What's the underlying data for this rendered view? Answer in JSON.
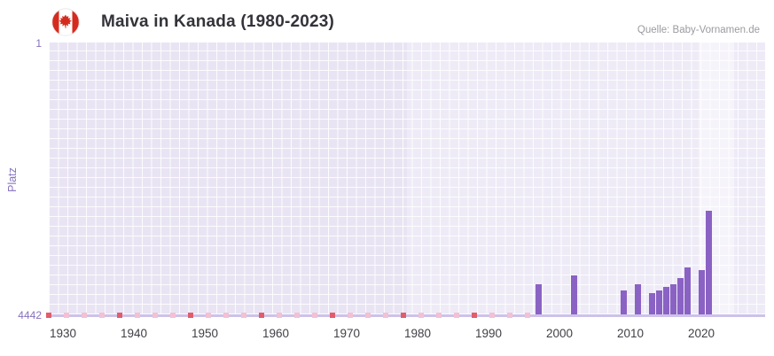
{
  "header": {
    "title": "Maiva in Kanada (1980-2023)",
    "source": "Quelle: Baby-Vornamen.de"
  },
  "chart_data": {
    "type": "bar",
    "title": "Maiva in Kanada (1980-2023)",
    "xlabel": "",
    "ylabel": "Platz",
    "y_axis": {
      "top_label": "1",
      "bottom_label": "4442",
      "min": 1,
      "max": 4442,
      "inverted": true
    },
    "x_domain": [
      1928,
      2029
    ],
    "x_ticks": [
      "1930",
      "1940",
      "1950",
      "1960",
      "1970",
      "1980",
      "1990",
      "2000",
      "2010",
      "2020"
    ],
    "grid": true,
    "legend": "none",
    "bar_color": "#8a62c4",
    "bars": [
      {
        "year": 1997,
        "rank": 3950
      },
      {
        "year": 2002,
        "rank": 3800
      },
      {
        "year": 2009,
        "rank": 4050
      },
      {
        "year": 2011,
        "rank": 3950
      },
      {
        "year": 2013,
        "rank": 4100
      },
      {
        "year": 2014,
        "rank": 4050
      },
      {
        "year": 2015,
        "rank": 4000
      },
      {
        "year": 2016,
        "rank": 3950
      },
      {
        "year": 2017,
        "rank": 3850
      },
      {
        "year": 2018,
        "rank": 3680
      },
      {
        "year": 2020,
        "rank": 3720
      },
      {
        "year": 2021,
        "rank": 2750
      }
    ],
    "baseline_markers": {
      "dark_color": "#e25c6b",
      "light_color": "#f3c0d4",
      "dark": [
        1928,
        1938,
        1948,
        1958,
        1968,
        1978,
        1988
      ],
      "light": [
        1930.5,
        1933,
        1935.5,
        1940.5,
        1943,
        1945.5,
        1950.5,
        1953,
        1955.5,
        1960.5,
        1963,
        1965.5,
        1970.5,
        1973,
        1975.5,
        1980.5,
        1983,
        1985.5,
        1990.5,
        1993,
        1995.5
      ]
    },
    "bands": [
      {
        "from": 1928,
        "to": 1978.5,
        "color": "#e9e4f3"
      },
      {
        "from": 1978.5,
        "to": 2019.6,
        "color": "#eeebf7"
      },
      {
        "from": 2019.6,
        "to": 2024.6,
        "color": "#f6f4fb"
      },
      {
        "from": 2024.6,
        "to": 2029,
        "color": "#eeebf7"
      }
    ]
  }
}
